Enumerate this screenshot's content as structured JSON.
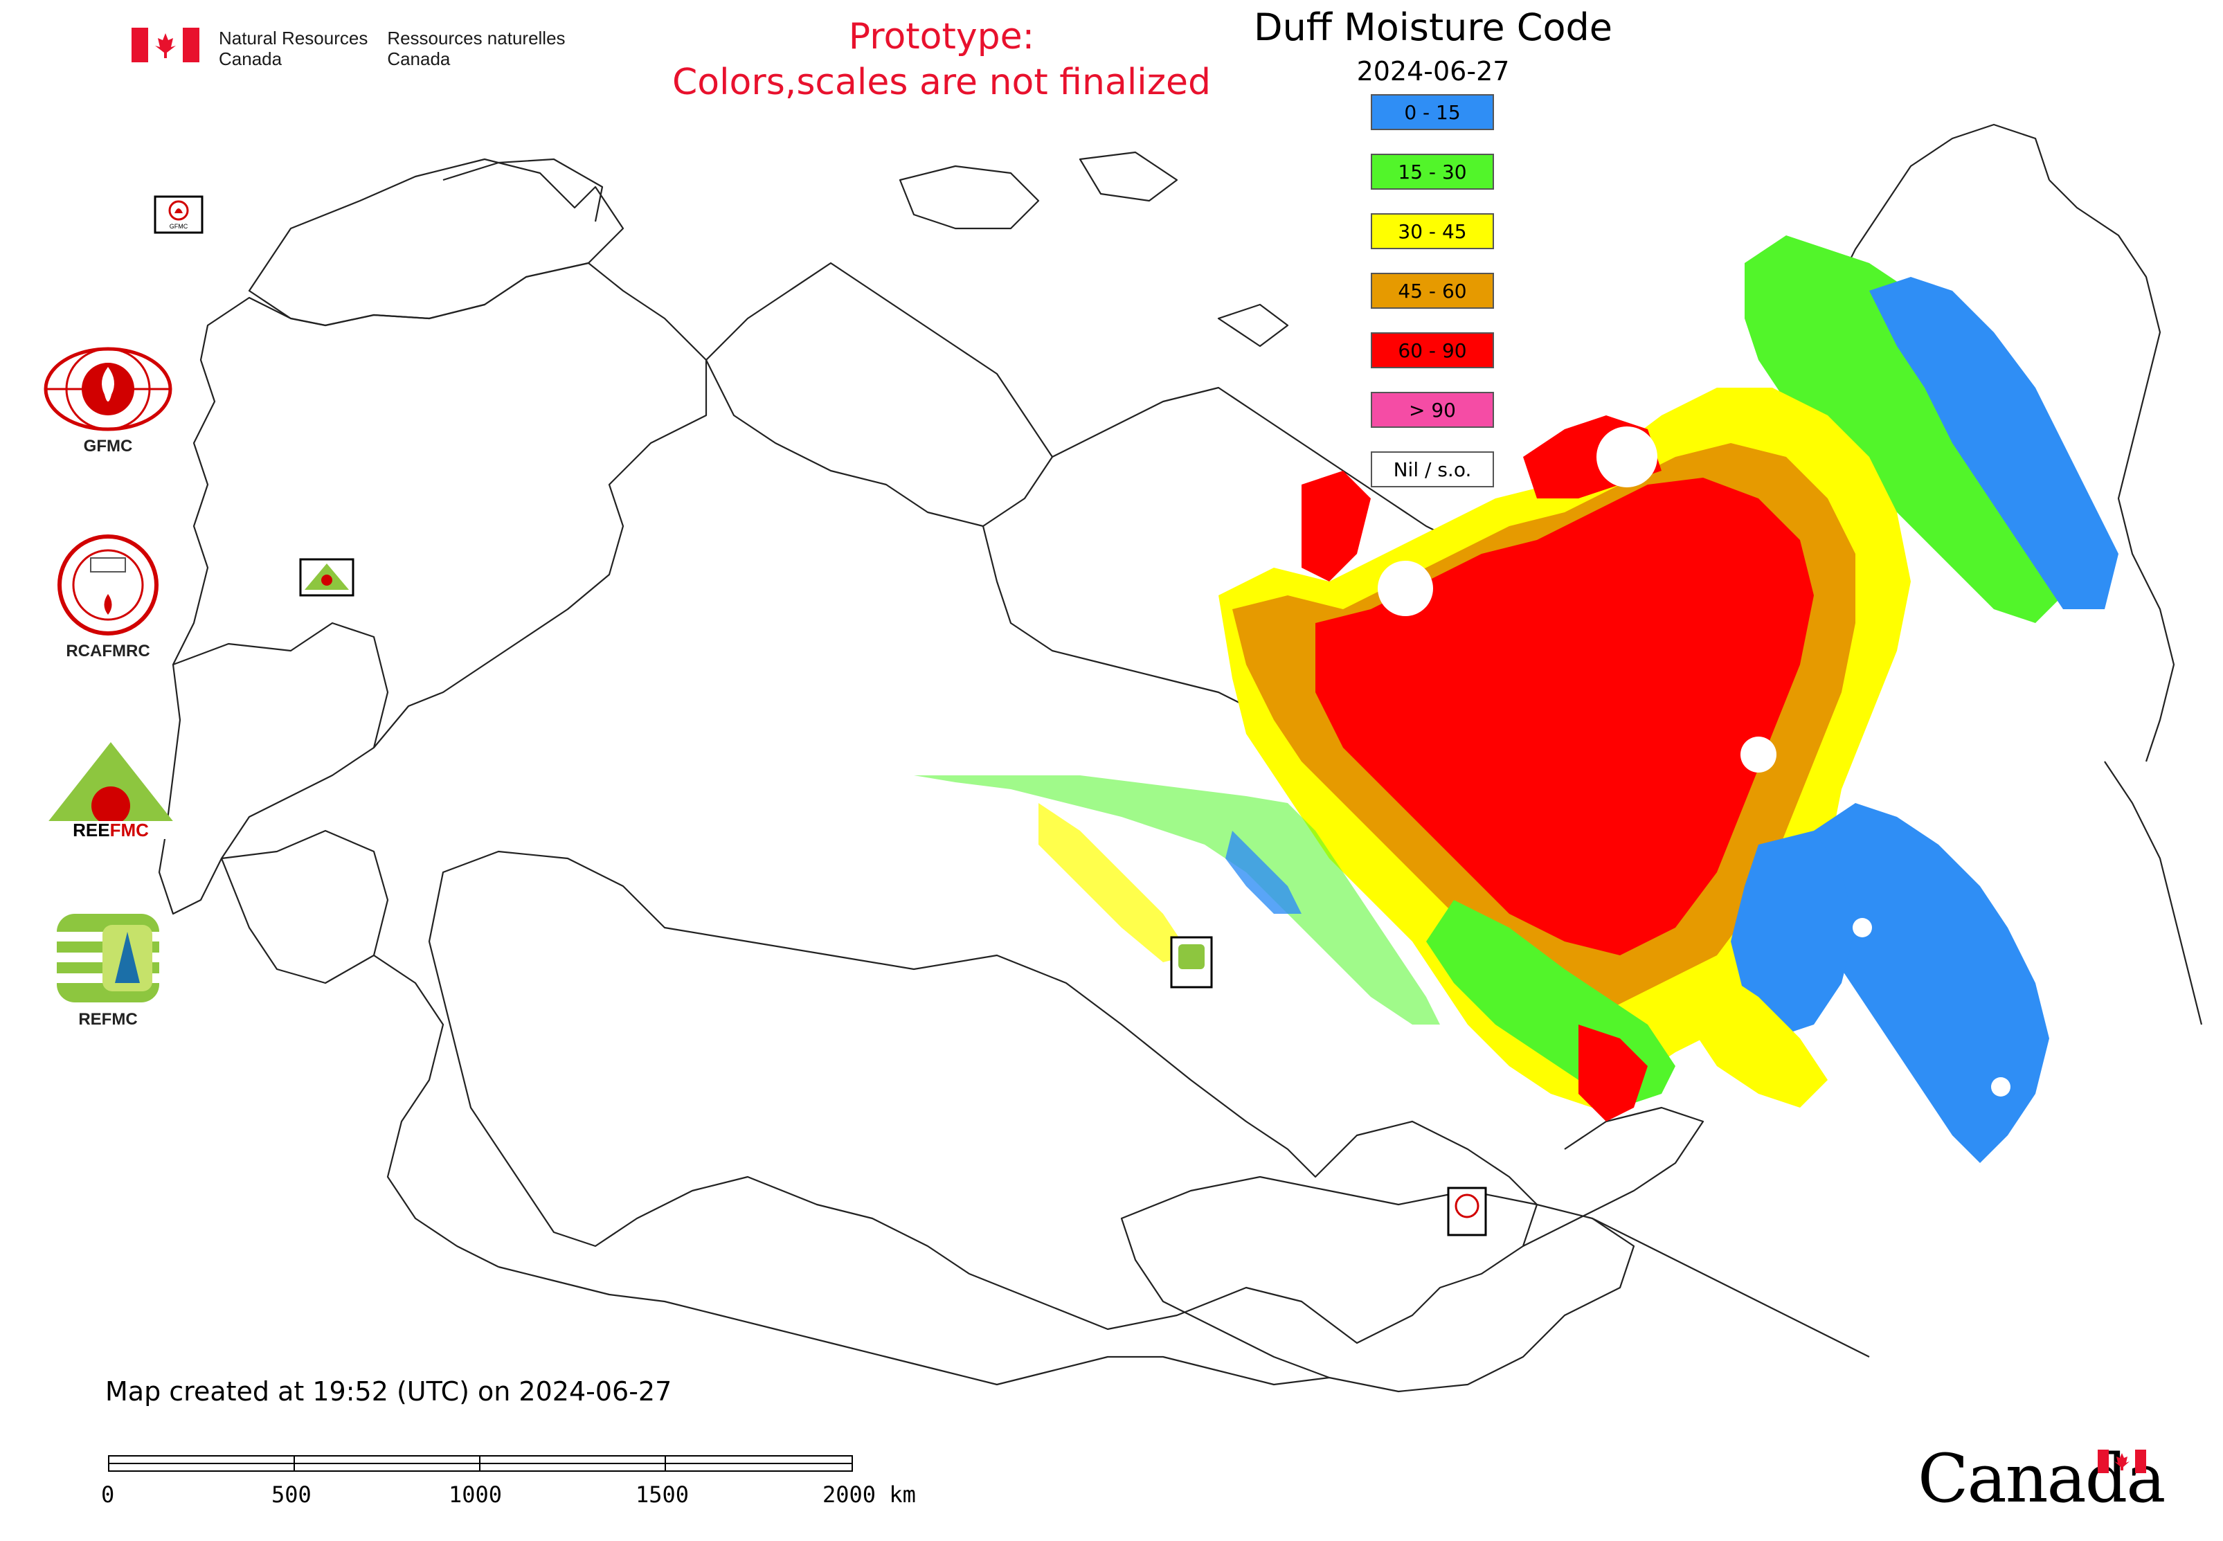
{
  "government": {
    "name_en_line1": "Natural Resources",
    "name_en_line2": "Canada",
    "name_fr_line1": "Ressources naturelles",
    "name_fr_line2": "Canada"
  },
  "notice": {
    "line1": "Prototype:",
    "line2": "Colors,scales are not finalized"
  },
  "map": {
    "title": "Duff Moisture Code",
    "date": "2024-06-27"
  },
  "legend": [
    {
      "label": "0 - 15",
      "color": "#2f8ef5"
    },
    {
      "label": "15 - 30",
      "color": "#52f52a"
    },
    {
      "label": "30 - 45",
      "color": "#ffff00"
    },
    {
      "label": "45 - 60",
      "color": "#e69a00"
    },
    {
      "label": "60 - 90",
      "color": "#ff0000"
    },
    {
      "label": "> 90",
      "color": "#f54ca5"
    },
    {
      "label": "Nil / s.o.",
      "color": "#ffffff"
    }
  ],
  "side_logos": [
    {
      "label": "GFMC"
    },
    {
      "label": "RCAFMRC"
    },
    {
      "label": ""
    },
    {
      "label": "REFMC"
    }
  ],
  "map_markers": [
    {
      "label": "GFMC"
    },
    {
      "label": "REEFMC"
    },
    {
      "label": "REFMC"
    },
    {
      "label": "RCAFMRC"
    }
  ],
  "footer": {
    "created_note": "Map created at 19:52 (UTC) on 2024-06-27"
  },
  "scale": {
    "ticks": [
      "0",
      "500",
      "1000",
      "1500",
      "2000 km"
    ]
  },
  "wordmark": {
    "text": "Canada"
  }
}
